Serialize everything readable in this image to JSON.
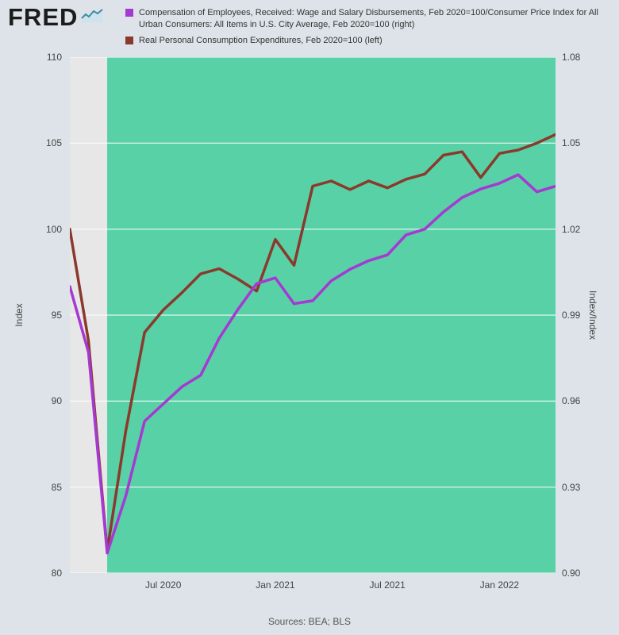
{
  "logo": {
    "text": "FRED",
    "icon": "line-chart-icon"
  },
  "source": "Sources: BEA; BLS",
  "colors": {
    "page_bg": "#dde3e8",
    "grid": "#ffffff",
    "tick_text": "#444444",
    "recession_band": "#e7e7e7",
    "highlight_band": "#58d1a7",
    "series_right": "#a539d2",
    "series_left": "#8a3a2c"
  },
  "chart_data": {
    "type": "line",
    "title": "",
    "legend_position": "top",
    "grid": "horizontal",
    "x": [
      "2020-02",
      "2020-03",
      "2020-04",
      "2020-05",
      "2020-06",
      "2020-07",
      "2020-08",
      "2020-09",
      "2020-10",
      "2020-11",
      "2020-12",
      "2021-01",
      "2021-02",
      "2021-03",
      "2021-04",
      "2021-05",
      "2021-06",
      "2021-07",
      "2021-08",
      "2021-09",
      "2021-10",
      "2021-11",
      "2021-12",
      "2022-01",
      "2022-02",
      "2022-03",
      "2022-04"
    ],
    "x_ticks": [
      {
        "x": "2020-07",
        "label": "Jul 2020"
      },
      {
        "x": "2021-01",
        "label": "Jan 2021"
      },
      {
        "x": "2021-07",
        "label": "Jul 2021"
      },
      {
        "x": "2022-01",
        "label": "Jan 2022"
      }
    ],
    "left_axis": {
      "label": "Index",
      "min": 80,
      "max": 110,
      "ticks": [
        80,
        85,
        90,
        95,
        100,
        105,
        110
      ]
    },
    "right_axis": {
      "label": "Index/Index",
      "min": 0.9,
      "max": 1.08,
      "ticks": [
        "0.90",
        "0.93",
        "0.96",
        "0.99",
        "1.02",
        "1.05",
        "1.08"
      ]
    },
    "bands": [
      {
        "name": "recession",
        "from": "2020-02",
        "to": "2020-04",
        "color": "#e7e7e7"
      },
      {
        "name": "highlight",
        "from": "2020-04",
        "to": "2022-04",
        "color": "#58d1a7"
      }
    ],
    "series": [
      {
        "name": "Compensation of Employees, Received: Wage and Salary Disbursements, Feb 2020=100/Consumer Price Index for All Urban Consumers: All Items in U.S. City Average, Feb 2020=100 (right)",
        "axis": "right",
        "color": "#a539d2",
        "values": [
          1.0,
          0.977,
          0.907,
          0.927,
          0.953,
          0.959,
          0.965,
          0.969,
          0.982,
          0.992,
          1.001,
          1.003,
          0.994,
          0.995,
          1.002,
          1.006,
          1.009,
          1.011,
          1.018,
          1.02,
          1.026,
          1.031,
          1.034,
          1.036,
          1.039,
          1.033,
          1.035
        ]
      },
      {
        "name": "Real Personal Consumption Expenditures, Feb 2020=100 (left)",
        "axis": "left",
        "color": "#8a3a2c",
        "values": [
          100.0,
          93.5,
          81.3,
          88.3,
          94.0,
          95.3,
          96.3,
          97.4,
          97.7,
          97.1,
          96.4,
          99.4,
          97.9,
          102.5,
          102.8,
          102.3,
          102.8,
          102.4,
          102.9,
          103.2,
          104.3,
          104.5,
          103.0,
          104.4,
          104.6,
          105.0,
          105.5
        ]
      }
    ]
  }
}
